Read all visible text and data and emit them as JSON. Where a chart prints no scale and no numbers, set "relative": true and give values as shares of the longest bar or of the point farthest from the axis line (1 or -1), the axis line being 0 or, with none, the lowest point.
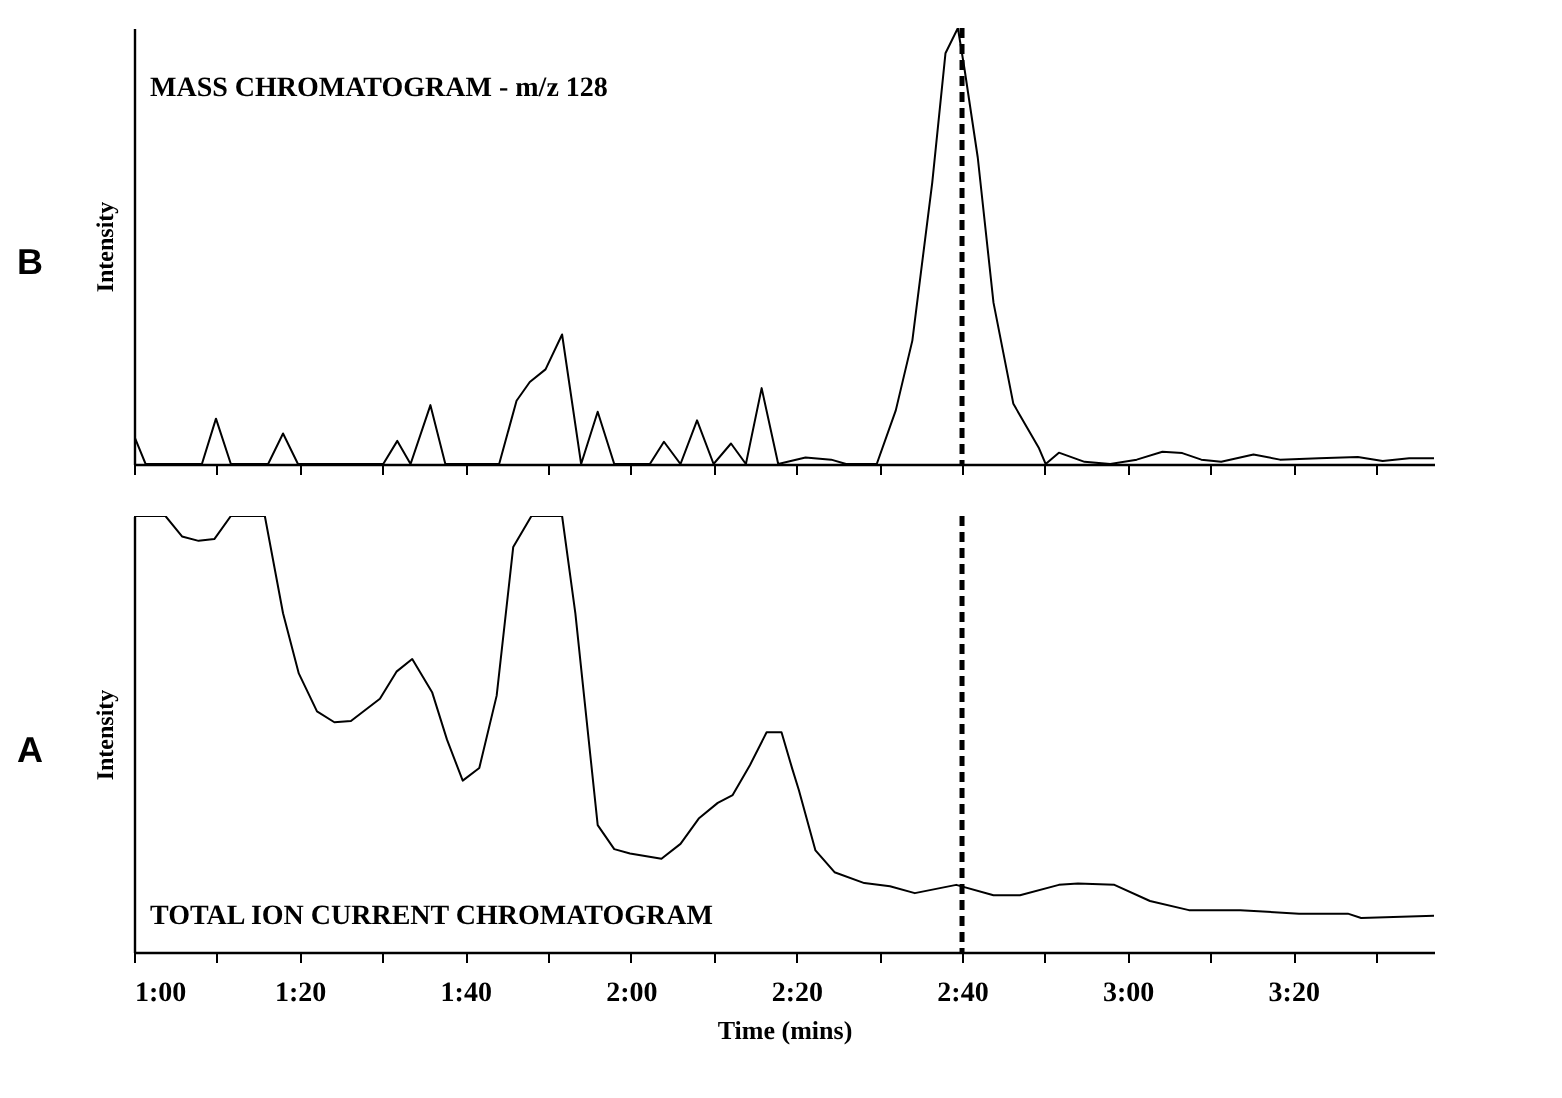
{
  "chart_data": [
    {
      "type": "line",
      "title": "B",
      "ylabel": "Intensity",
      "annotations": [
        "MASS CHROMATOGRAM - m/z 128"
      ],
      "relative": true,
      "tick_labels": false,
      "xlim": [
        60,
        217
      ],
      "xticks": [
        {
          "value": 60,
          "label": null
        },
        {
          "value": 70,
          "label": null
        },
        {
          "value": 80,
          "label": null
        },
        {
          "value": 90,
          "label": null
        },
        {
          "value": 100,
          "label": null
        },
        {
          "value": 110,
          "label": null
        },
        {
          "value": 120,
          "label": null
        },
        {
          "value": 130,
          "label": null
        },
        {
          "value": 140,
          "label": null
        },
        {
          "value": 150,
          "label": null
        },
        {
          "value": 160,
          "label": null
        },
        {
          "value": 170,
          "label": null
        },
        {
          "value": 180,
          "label": null
        },
        {
          "value": 190,
          "label": null
        },
        {
          "value": 200,
          "label": null
        },
        {
          "value": 210,
          "label": null
        }
      ],
      "ref_lines": [
        {
          "axis": "x",
          "value": 160,
          "line_style": "dashed",
          "color": "#000000"
        }
      ],
      "series": [
        {
          "color": "#000000",
          "x": [
            60,
            61.4,
            68.2,
            69.9,
            71.7,
            76.2,
            78,
            79.8,
            90.1,
            91.8,
            93.4,
            95.8,
            97.6,
            104.1,
            106.2,
            107.8,
            109.7,
            111.7,
            114,
            116,
            118,
            122.3,
            124,
            126,
            128,
            130,
            132.1,
            133.9,
            135.8,
            137.8,
            141.1,
            144.2,
            146,
            149.7,
            152,
            154,
            156.4,
            158,
            159.5,
            160.3,
            161.9,
            163.8,
            166.2,
            169.3,
            170.1,
            171.7,
            174.8,
            177.9,
            181.1,
            184.2,
            186.6,
            188.9,
            191.3,
            195.2,
            198.4,
            203.1,
            207.8,
            210.8,
            214,
            217
          ],
          "values": [
            0.065,
            0,
            0,
            0.104,
            0,
            0,
            0.07,
            0,
            0,
            0.053,
            0,
            0.135,
            0,
            0,
            0.145,
            0.188,
            0.217,
            0.297,
            0,
            0.12,
            0,
            0,
            0.051,
            0,
            0.1,
            0,
            0.047,
            0,
            0.174,
            0,
            0.015,
            0.01,
            0,
            0,
            0.123,
            0.283,
            0.645,
            0.942,
            1,
            0.906,
            0.703,
            0.37,
            0.138,
            0.036,
            0,
            0.026,
            0.005,
            0,
            0.01,
            0.028,
            0.025,
            0.01,
            0.005,
            0.022,
            0.01,
            0.013,
            0.016,
            0.007,
            0.013,
            0.013
          ]
        }
      ]
    },
    {
      "type": "line",
      "title": "A",
      "ylabel": "Intensity",
      "xlabel": "Time  (mins)",
      "annotations": [
        "TOTAL  ION  CURRENT  CHROMATOGRAM"
      ],
      "relative": true,
      "tick_labels": "x",
      "xlim": [
        60,
        217
      ],
      "xticks": [
        {
          "value": 60,
          "label": "1:00"
        },
        {
          "value": 70,
          "label": null
        },
        {
          "value": 80,
          "label": "1:20"
        },
        {
          "value": 90,
          "label": null
        },
        {
          "value": 100,
          "label": "1:40"
        },
        {
          "value": 110,
          "label": null
        },
        {
          "value": 120,
          "label": "2:00"
        },
        {
          "value": 130,
          "label": null
        },
        {
          "value": 140,
          "label": "2:20"
        },
        {
          "value": 150,
          "label": null
        },
        {
          "value": 160,
          "label": "2:40"
        },
        {
          "value": 170,
          "label": null
        },
        {
          "value": 180,
          "label": "3:00"
        },
        {
          "value": 190,
          "label": null
        },
        {
          "value": 200,
          "label": "3:20"
        },
        {
          "value": 210,
          "label": null
        }
      ],
      "ref_lines": [
        {
          "axis": "x",
          "value": 160,
          "line_style": "dashed",
          "color": "#000000"
        }
      ],
      "series": [
        {
          "color": "#000000",
          "x": [
            60,
            63.8,
            65.8,
            67.8,
            69.7,
            71.7,
            75.8,
            78,
            79.9,
            82.1,
            84.2,
            86.2,
            89.7,
            91.7,
            93.6,
            96,
            97.8,
            99.7,
            101.7,
            103.8,
            105.8,
            108,
            111.7,
            113.3,
            116,
            118,
            119.9,
            123.7,
            126,
            128.2,
            130.5,
            132.3,
            134.4,
            136.4,
            138.2,
            139.5,
            140.3,
            142.3,
            144.6,
            148.2,
            151.3,
            154.3,
            159.3,
            163.8,
            167,
            171.7,
            174,
            178.4,
            182.7,
            187.4,
            193.6,
            200.7,
            206.6,
            208.2,
            217
          ],
          "values": [
            1,
            1,
            0.953,
            0.943,
            0.947,
            1,
            1,
            0.777,
            0.639,
            0.552,
            0.527,
            0.53,
            0.581,
            0.643,
            0.672,
            0.596,
            0.487,
            0.393,
            0.422,
            0.588,
            0.929,
            1,
            1,
            0.777,
            0.291,
            0.236,
            0.226,
            0.214,
            0.248,
            0.306,
            0.342,
            0.36,
            0.429,
            0.504,
            0.504,
            0.42,
            0.371,
            0.233,
            0.183,
            0.158,
            0.151,
            0.135,
            0.154,
            0.13,
            0.13,
            0.154,
            0.157,
            0.154,
            0.117,
            0.096,
            0.096,
            0.088,
            0.088,
            0.078,
            0.083
          ]
        }
      ]
    }
  ]
}
